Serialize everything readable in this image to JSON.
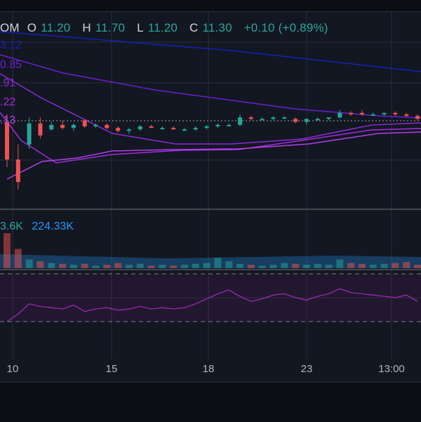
{
  "header": {
    "ticker_suffix": "OM",
    "open_label": "O",
    "open": "11.20",
    "high_label": "H",
    "high": "11.70",
    "low_label": "L",
    "low": "11.20",
    "close_label": "C",
    "close": "11.30",
    "change": "+0.10 (+0.89%)"
  },
  "ma_legend": [
    {
      "text": "3.12",
      "color": "#1a1fb5"
    },
    {
      "text": "0.85",
      "color": "#6a1fd1"
    },
    {
      "text": ".91",
      "color": "#8a2ad6"
    },
    {
      "text": ".22",
      "color": "#a52ce0"
    },
    {
      "text": ".13",
      "color": "#b040e8"
    }
  ],
  "volume_legend": {
    "v1": "3.6K",
    "v2": "224.33K",
    "v1_color": "#26a69a",
    "v2_color": "#2196f3"
  },
  "colors": {
    "up": "#26a69a",
    "down": "#ef5350",
    "grid": "#2a2e39",
    "rsi": "#9c27b0",
    "vol_ma": "#2196f3"
  },
  "x_ticks": [
    "10",
    "15",
    "18",
    "23",
    "13:00"
  ],
  "chart_data": {
    "type": "candlestick",
    "x_ticks": [
      "10",
      "15",
      "18",
      "23",
      "13:00"
    ],
    "last_price": 11.3,
    "candles": [
      {
        "o": 11.25,
        "h": 11.3,
        "l": 10.95,
        "c": 11.0
      },
      {
        "o": 11.0,
        "h": 11.1,
        "l": 10.8,
        "c": 10.85
      },
      {
        "o": 11.1,
        "h": 11.28,
        "l": 11.07,
        "c": 11.24
      },
      {
        "o": 11.24,
        "h": 11.28,
        "l": 11.14,
        "c": 11.16
      },
      {
        "o": 11.2,
        "h": 11.25,
        "l": 11.19,
        "c": 11.23
      },
      {
        "o": 11.23,
        "h": 11.26,
        "l": 11.2,
        "c": 11.21
      },
      {
        "o": 11.21,
        "h": 11.24,
        "l": 11.19,
        "c": 11.23
      },
      {
        "o": 11.26,
        "h": 11.27,
        "l": 11.21,
        "c": 11.22
      },
      {
        "o": 11.22,
        "h": 11.24,
        "l": 11.21,
        "c": 11.23
      },
      {
        "o": 11.23,
        "h": 11.24,
        "l": 11.2,
        "c": 11.21
      },
      {
        "o": 11.21,
        "h": 11.22,
        "l": 11.18,
        "c": 11.19
      },
      {
        "o": 11.19,
        "h": 11.21,
        "l": 11.17,
        "c": 11.2
      },
      {
        "o": 11.2,
        "h": 11.23,
        "l": 11.19,
        "c": 11.22
      },
      {
        "o": 11.22,
        "h": 11.23,
        "l": 11.21,
        "c": 11.21
      },
      {
        "o": 11.21,
        "h": 11.22,
        "l": 11.2,
        "c": 11.21
      },
      {
        "o": 11.21,
        "h": 11.22,
        "l": 11.2,
        "c": 11.2
      },
      {
        "o": 11.2,
        "h": 11.21,
        "l": 11.19,
        "c": 11.2
      },
      {
        "o": 11.2,
        "h": 11.22,
        "l": 11.19,
        "c": 11.21
      },
      {
        "o": 11.21,
        "h": 11.23,
        "l": 11.2,
        "c": 11.22
      },
      {
        "o": 11.22,
        "h": 11.24,
        "l": 11.21,
        "c": 11.23
      },
      {
        "o": 11.23,
        "h": 11.24,
        "l": 11.22,
        "c": 11.23
      },
      {
        "o": 11.23,
        "h": 11.3,
        "l": 11.22,
        "c": 11.28
      },
      {
        "o": 11.28,
        "h": 11.29,
        "l": 11.26,
        "c": 11.27
      },
      {
        "o": 11.27,
        "h": 11.28,
        "l": 11.26,
        "c": 11.27
      },
      {
        "o": 11.27,
        "h": 11.29,
        "l": 11.26,
        "c": 11.28
      },
      {
        "o": 11.28,
        "h": 11.29,
        "l": 11.27,
        "c": 11.28
      },
      {
        "o": 11.27,
        "h": 11.28,
        "l": 11.24,
        "c": 11.25
      },
      {
        "o": 11.25,
        "h": 11.27,
        "l": 11.23,
        "c": 11.27
      },
      {
        "o": 11.27,
        "h": 11.28,
        "l": 11.26,
        "c": 11.27
      },
      {
        "o": 11.27,
        "h": 11.28,
        "l": 11.26,
        "c": 11.28
      },
      {
        "o": 11.28,
        "h": 11.33,
        "l": 11.27,
        "c": 11.31
      },
      {
        "o": 11.31,
        "h": 11.32,
        "l": 11.29,
        "c": 11.3
      },
      {
        "o": 11.31,
        "h": 11.33,
        "l": 11.29,
        "c": 11.3
      },
      {
        "o": 11.3,
        "h": 11.31,
        "l": 11.29,
        "c": 11.3
      },
      {
        "o": 11.3,
        "h": 11.31,
        "l": 11.29,
        "c": 11.31
      },
      {
        "o": 11.31,
        "h": 11.32,
        "l": 11.29,
        "c": 11.3
      },
      {
        "o": 11.3,
        "h": 11.31,
        "l": 11.28,
        "c": 11.29
      },
      {
        "o": 11.29,
        "h": 11.3,
        "l": 11.26,
        "c": 11.27
      }
    ],
    "volume": [
      40,
      22,
      10,
      8,
      6,
      5,
      4,
      5,
      3,
      4,
      6,
      4,
      5,
      3,
      4,
      3,
      4,
      5,
      6,
      12,
      8,
      5,
      4,
      3,
      4,
      6,
      5,
      4,
      5,
      4,
      10,
      6,
      5,
      4,
      5,
      6,
      7,
      4
    ],
    "rsi": [
      30,
      36,
      44,
      42,
      41,
      40,
      43,
      38,
      40,
      41,
      39,
      40,
      42,
      40,
      41,
      40,
      41,
      44,
      48,
      52,
      55,
      50,
      46,
      48,
      51,
      52,
      49,
      47,
      50,
      52,
      56,
      53,
      52,
      51,
      50,
      49,
      51,
      46
    ]
  }
}
